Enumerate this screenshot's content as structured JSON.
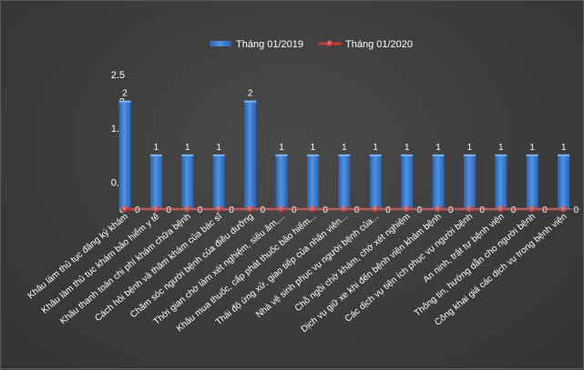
{
  "chart_data": {
    "type": "bar",
    "title": "",
    "xlabel": "",
    "ylabel": "",
    "ylim": [
      0,
      2.5
    ],
    "yticks": [
      "0",
      "0.5",
      "1",
      "1.5",
      "2",
      "2.5"
    ],
    "grid": false,
    "legend_position": "top",
    "categories": [
      "Khâu làm thủ tục đăng ký khám",
      "Khâu làm thủ tục khám bảo hiểm y tế",
      "Khâu thanh toán chi phí khám chữa bệnh",
      "Cách hỏi bệnh và thăm khám của bác sĩ",
      "Chăm sóc người bệnh của điều dưỡng",
      "Thời gian chờ làm xét nghiệm, siêu âm,...",
      "Khâu mua thuốc, cấp phát thuốc bảo hiểm...",
      "Thái độ ứng xử, giao tiếp của nhân viên...",
      "Nhà vệ sinh phục vụ người bệnh của...",
      "Chỗ ngồi chờ khám, chờ xét nghiệm",
      "Dịch vụ giữ xe khi đến bệnh viện khám bệnh",
      "Các dịch vụ tiện ích phục vụ người bệnh",
      "An ninh, trật tự bệnh viện",
      "Thông tin, hướng dẫn cho người bệnh",
      "Công khai giá các dịch vụ trong bệnh viện"
    ],
    "series": [
      {
        "name": "Tháng 01/2019",
        "kind": "bar",
        "color": "#3d7fd6",
        "values": [
          2,
          1,
          1,
          1,
          2,
          1,
          1,
          1,
          1,
          1,
          1,
          1,
          1,
          1,
          1
        ],
        "labels": [
          "2",
          "1",
          "1",
          "1",
          "2",
          "1",
          "1",
          "1",
          "1",
          "1",
          "1",
          "1",
          "1",
          "1",
          "1"
        ]
      },
      {
        "name": "Tháng 01/2020",
        "kind": "line",
        "color": "#c0393b",
        "values": [
          0,
          0,
          0,
          0,
          0,
          0,
          0,
          0,
          0,
          0,
          0,
          0,
          0,
          0,
          0
        ],
        "labels": [
          "0",
          "0",
          "0",
          "0",
          "0",
          "0",
          "0",
          "0",
          "0",
          "0",
          "0",
          "0",
          "0",
          "0",
          "0"
        ]
      }
    ]
  }
}
